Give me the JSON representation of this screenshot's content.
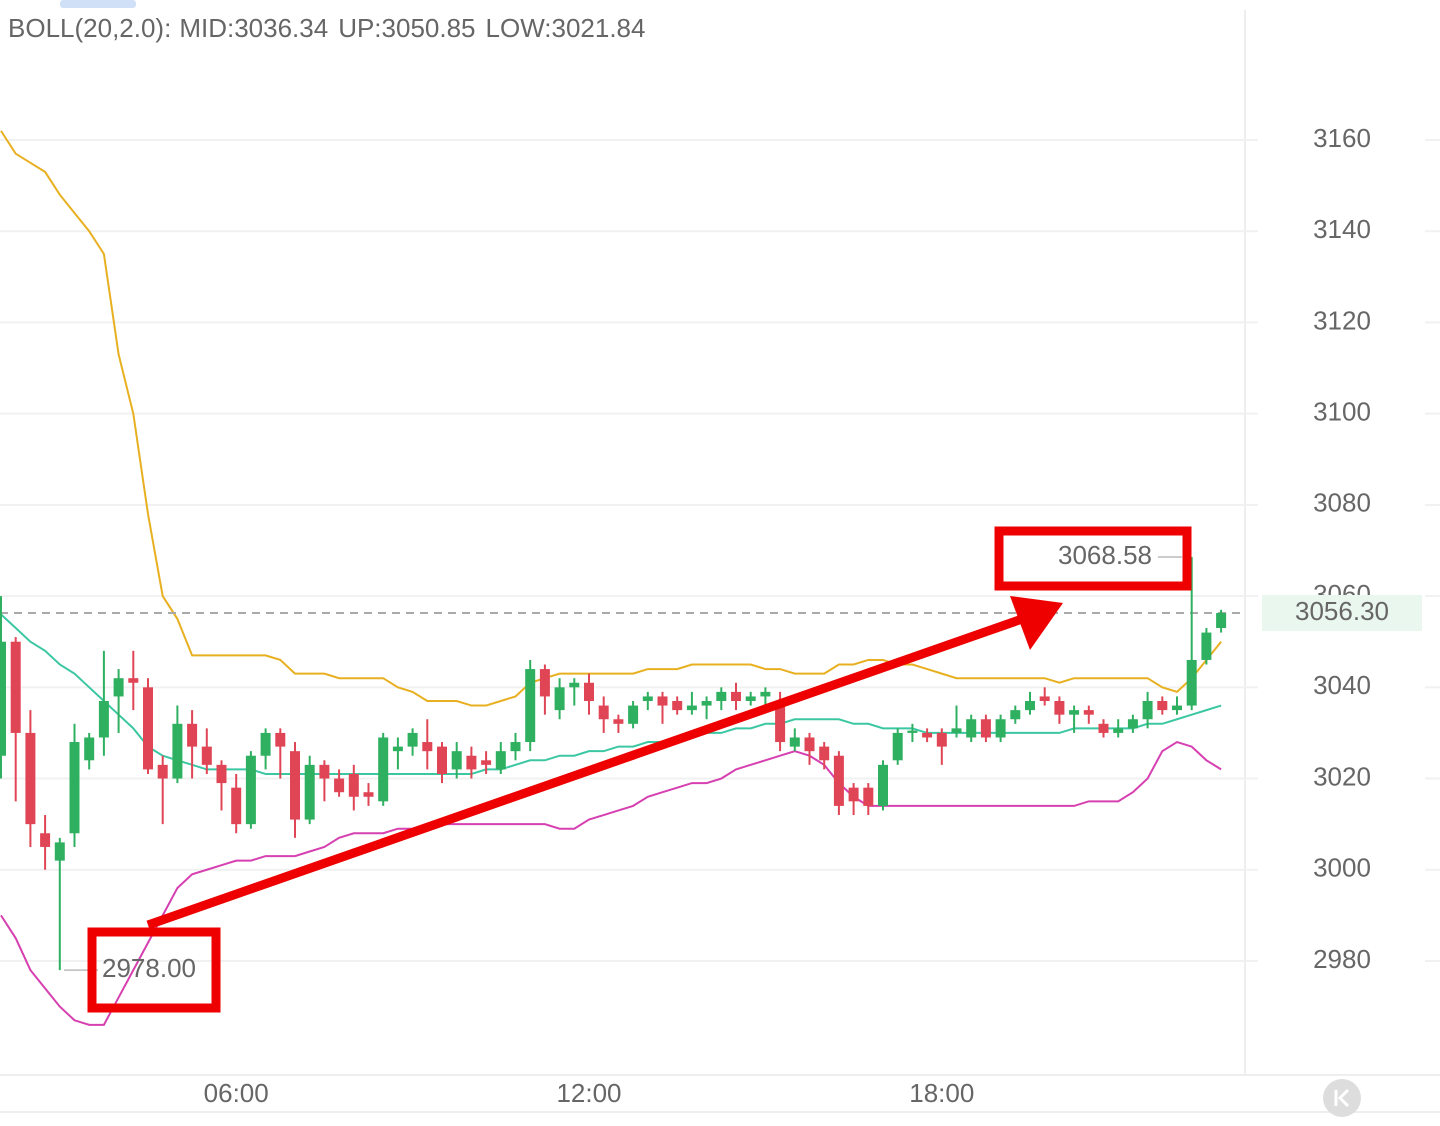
{
  "chart_data": {
    "type": "candlestick",
    "indicator": "BOLL(20,2.0):",
    "categories": [
      null,
      null,
      null,
      null,
      null,
      null,
      null,
      null,
      null,
      null,
      null,
      null,
      null,
      null,
      null,
      null,
      "06:00",
      null,
      null,
      null,
      null,
      null,
      null,
      null,
      null,
      null,
      null,
      null,
      null,
      null,
      null,
      null,
      null,
      null,
      null,
      null,
      null,
      null,
      null,
      null,
      "12:00",
      null,
      null,
      null,
      null,
      null,
      null,
      null,
      null,
      null,
      null,
      null,
      null,
      null,
      null,
      null,
      null,
      null,
      null,
      null,
      null,
      null,
      null,
      null,
      "18:00",
      null,
      null,
      null,
      null,
      null,
      null,
      null,
      null,
      null,
      null,
      null,
      null,
      null,
      null,
      null,
      null,
      null,
      null,
      null
    ],
    "open": [
      3025,
      3050,
      3030,
      3008,
      3002,
      3008,
      3024,
      3029,
      3038,
      3042,
      3040,
      3023,
      3020,
      3032,
      3027,
      3023,
      3018,
      3010,
      3025,
      3030,
      3026,
      3011,
      3023,
      3020,
      3021,
      3017,
      3015,
      3026,
      3027,
      3028,
      3027,
      3022,
      3025,
      3024,
      3022,
      3026,
      3028,
      3044,
      3035,
      3040,
      3041,
      3036,
      3033,
      3032,
      3037,
      3038,
      3037,
      3035,
      3036,
      3037,
      3039,
      3037,
      3038,
      3037,
      3027,
      3029,
      3027,
      3025,
      3018,
      3018,
      3014,
      3024,
      3030,
      3030,
      3030,
      3030,
      3029,
      3033,
      3029,
      3033,
      3035,
      3038,
      3037,
      3034,
      3035,
      3032,
      3030,
      3031,
      3033,
      3037,
      3035,
      3036,
      3046,
      3053
    ],
    "high": [
      3060,
      3051,
      3035,
      3012,
      3007,
      3032,
      3030,
      3048,
      3044,
      3048,
      3042,
      3025,
      3036,
      3035,
      3031,
      3024,
      3021,
      3026,
      3031,
      3031,
      3028,
      3025,
      3024,
      3022,
      3023,
      3019,
      3030,
      3029,
      3031,
      3033,
      3028,
      3028,
      3027,
      3026,
      3028,
      3030,
      3046,
      3045,
      3042,
      3042,
      3043,
      3038,
      3034,
      3037,
      3039,
      3039,
      3038,
      3039,
      3038,
      3040,
      3041,
      3039,
      3040,
      3039,
      3031,
      3030,
      3028,
      3026,
      3019,
      3019,
      3024,
      3031,
      3032,
      3031,
      3031,
      3036,
      3034,
      3034,
      3034,
      3036,
      3039,
      3040,
      3038,
      3036,
      3036,
      3033,
      3033,
      3034,
      3039,
      3038,
      3038,
      3068.58,
      3053,
      3057
    ],
    "low": [
      3020,
      3015,
      3005,
      3000,
      2978,
      3005,
      3022,
      3025,
      3030,
      3035,
      3021,
      3010,
      3019,
      3020,
      3021,
      3013,
      3008,
      3009,
      3022,
      3020,
      3007,
      3010,
      3015,
      3016,
      3013,
      3014,
      3014,
      3022,
      3025,
      3022,
      3019,
      3020,
      3020,
      3021,
      3021,
      3024,
      3026,
      3034,
      3033,
      3036,
      3034,
      3030,
      3030,
      3031,
      3035,
      3032,
      3034,
      3034,
      3033,
      3035,
      3035,
      3036,
      3036,
      3026,
      3026,
      3023,
      3022,
      3012,
      3012,
      3012,
      3013,
      3023,
      3028,
      3028,
      3023,
      3029,
      3028,
      3028,
      3028,
      3032,
      3034,
      3036,
      3032,
      3030,
      3032,
      3029,
      3029,
      3030,
      3031,
      3034,
      3034,
      3035,
      3045,
      3052
    ],
    "close": [
      3050,
      3030,
      3010,
      3005,
      3006,
      3028,
      3029,
      3037,
      3042,
      3041,
      3022,
      3020,
      3032,
      3027,
      3023,
      3019,
      3010,
      3025,
      3030,
      3027,
      3011,
      3023,
      3020,
      3017,
      3016,
      3016,
      3029,
      3027,
      3030,
      3026,
      3021,
      3026,
      3022,
      3023,
      3026,
      3028,
      3044,
      3038,
      3040,
      3041,
      3037,
      3033,
      3032,
      3036,
      3038,
      3036,
      3035,
      3036,
      3037,
      3039,
      3037,
      3038,
      3039,
      3028,
      3029,
      3026,
      3024,
      3014,
      3015,
      3014,
      3023,
      3030,
      3030.5,
      3029,
      3027,
      3031,
      3033,
      3029,
      3033,
      3035,
      3037,
      3037,
      3034,
      3035,
      3034,
      3030,
      3031,
      3033,
      3037,
      3035,
      3036,
      3046,
      3052,
      3056.3
    ],
    "up_color": "#2eb060",
    "down_color": "#e04555",
    "series": [
      {
        "name": "MID:3036.34",
        "color": "#3cc7a3",
        "values": [
          3056,
          3053,
          3050,
          3048,
          3045,
          3043,
          3040,
          3037,
          3034,
          3031,
          3027,
          3025,
          3024,
          3023,
          3022,
          3022,
          3022,
          3022,
          3021,
          3021,
          3021,
          3021,
          3021,
          3021,
          3021,
          3021,
          3021,
          3021,
          3021,
          3021,
          3021,
          3021,
          3021,
          3022,
          3022,
          3023,
          3024,
          3024,
          3025,
          3025,
          3026,
          3026,
          3027,
          3027,
          3028,
          3028,
          3029,
          3029,
          3030,
          3030,
          3031,
          3031,
          3032,
          3032,
          3033,
          3033,
          3033,
          3033,
          3032,
          3032,
          3031,
          3031,
          3031,
          3030,
          3030,
          3030,
          3030,
          3030,
          3030,
          3030,
          3030,
          3030,
          3030,
          3031,
          3031,
          3031,
          3031,
          3031,
          3032,
          3032,
          3033,
          3034,
          3035,
          3036
        ]
      },
      {
        "name": "UP:3050.85",
        "color": "#e8b020",
        "values": [
          3162,
          3157,
          3155,
          3153,
          3148,
          3144,
          3140,
          3135,
          3113,
          3100,
          3078,
          3060,
          3055,
          3047,
          3047,
          3047,
          3047,
          3047,
          3047,
          3046,
          3043,
          3043,
          3043,
          3042,
          3042,
          3042,
          3042,
          3040,
          3039,
          3037,
          3037,
          3037,
          3036,
          3036,
          3037,
          3038,
          3041,
          3042,
          3043,
          3043,
          3043,
          3043,
          3043,
          3043,
          3044,
          3044,
          3044,
          3045,
          3045,
          3045,
          3045,
          3045,
          3044,
          3044,
          3043,
          3043,
          3043,
          3045,
          3045,
          3046,
          3046,
          3045,
          3045,
          3044,
          3043,
          3042,
          3042,
          3042,
          3042,
          3042,
          3042,
          3042,
          3041,
          3042,
          3042,
          3042,
          3042,
          3042,
          3042,
          3040,
          3039,
          3042,
          3046,
          3050
        ]
      },
      {
        "name": "LOW:3021.84",
        "color": "#d640b0",
        "values": [
          2990,
          2985,
          2978,
          2974,
          2970,
          2967,
          2966,
          2966,
          2972,
          2978,
          2984,
          2990,
          2996,
          2999,
          3000,
          3001,
          3002,
          3002,
          3003,
          3003,
          3003,
          3004,
          3005,
          3007,
          3008,
          3008,
          3008,
          3009,
          3009,
          3010,
          3010,
          3010,
          3010,
          3010,
          3010,
          3010,
          3010,
          3010,
          3009,
          3009,
          3011,
          3012,
          3013,
          3014,
          3016,
          3017,
          3018,
          3019,
          3019,
          3020,
          3022,
          3023,
          3024,
          3025,
          3026,
          3025,
          3023,
          3019,
          3016,
          3014,
          3014,
          3014,
          3014,
          3014,
          3014,
          3014,
          3014,
          3014,
          3014,
          3014,
          3014,
          3014,
          3014,
          3014,
          3015,
          3015,
          3015,
          3017,
          3020,
          3026,
          3028,
          3027,
          3024,
          3022
        ]
      }
    ],
    "ylim": [
      2955,
      3188.5
    ],
    "yticks": [
      2980,
      3000,
      3020,
      3040,
      3060,
      3080,
      3100,
      3120,
      3140,
      3160
    ],
    "grid": true,
    "last_price": {
      "value": 3056.3,
      "label": "3056.30"
    },
    "max_label": {
      "value": 3068.58,
      "label": "3068.58"
    },
    "min_label": {
      "value": 2978,
      "label": "2978.00"
    }
  }
}
